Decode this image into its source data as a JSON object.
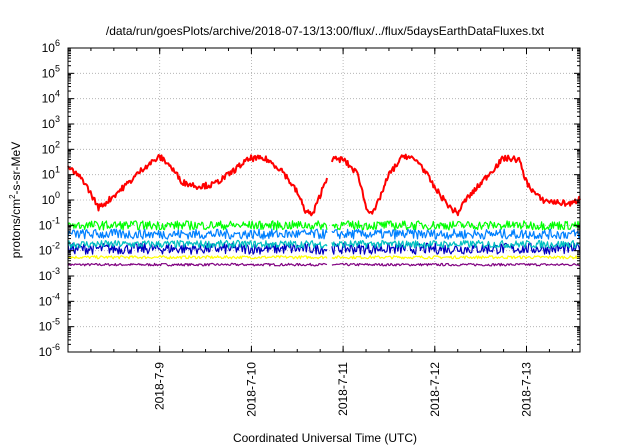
{
  "chart_data": {
    "type": "line",
    "title": "/data/run/goesPlots/archive/2018-07-13/13:00/flux/../flux/5daysEarthDataFluxes.txt",
    "xlabel": "Coordinated Universal Time (UTC)",
    "ylabel_parts": [
      "protons/cm",
      "2",
      "-s-sr-MeV"
    ],
    "ylim": [
      1e-06,
      1000000.0
    ],
    "yscale": "log",
    "xlim": [
      "2018-07-08 00:00",
      "2018-07-13 14:00"
    ],
    "grid": true,
    "y_ticks": [
      {
        "base": "10",
        "exp": "6"
      },
      {
        "base": "10",
        "exp": "5"
      },
      {
        "base": "10",
        "exp": "4"
      },
      {
        "base": "10",
        "exp": "3"
      },
      {
        "base": "10",
        "exp": "2"
      },
      {
        "base": "10",
        "exp": "1"
      },
      {
        "base": "10",
        "exp": "0"
      },
      {
        "base": "10",
        "exp": "-1"
      },
      {
        "base": "10",
        "exp": "-2"
      },
      {
        "base": "10",
        "exp": "-3"
      },
      {
        "base": "10",
        "exp": "-4"
      },
      {
        "base": "10",
        "exp": "-5"
      },
      {
        "base": "10",
        "exp": "-6"
      }
    ],
    "x_tick_labels": [
      "2018-7-9",
      "2018-7-10",
      "2018-7-11",
      "2018-7-12",
      "2018-7-13"
    ],
    "data_gap": [
      "2018-07-10 20:00",
      "2018-07-10 21:00"
    ],
    "series": [
      {
        "color": "#ff0000",
        "noise": 0.12,
        "x": [
          "2018-07-08 00:00",
          "2018-07-08 04:00",
          "2018-07-08 08:00",
          "2018-07-08 10:00",
          "2018-07-08 12:00",
          "2018-07-08 16:00",
          "2018-07-08 20:00",
          "2018-07-09 00:00",
          "2018-07-09 02:00",
          "2018-07-09 06:00",
          "2018-07-09 10:00",
          "2018-07-09 14:00",
          "2018-07-09 18:00",
          "2018-07-09 22:00",
          "2018-07-10 00:00",
          "2018-07-10 04:00",
          "2018-07-10 08:00",
          "2018-07-10 12:00",
          "2018-07-10 14:00",
          "2018-07-10 16:00",
          "2018-07-10 20:00",
          "2018-07-10 21:00",
          "2018-07-11 00:00",
          "2018-07-11 04:00",
          "2018-07-11 06:00",
          "2018-07-11 08:00",
          "2018-07-11 12:00",
          "2018-07-11 16:00",
          "2018-07-11 20:00",
          "2018-07-12 00:00",
          "2018-07-12 04:00",
          "2018-07-12 06:00",
          "2018-07-12 08:00",
          "2018-07-12 10:00",
          "2018-07-12 14:00",
          "2018-07-12 18:00",
          "2018-07-12 22:00",
          "2018-07-13 00:00",
          "2018-07-13 02:00",
          "2018-07-13 04:00",
          "2018-07-13 08:00",
          "2018-07-13 12:00",
          "2018-07-13 14:00"
        ],
        "values": [
          20,
          6,
          0.5,
          0.8,
          1.5,
          5,
          20,
          50,
          30,
          5,
          3.5,
          4,
          10,
          30,
          45,
          40,
          15,
          2,
          0.4,
          0.25,
          10,
          40,
          40,
          10,
          0.5,
          0.3,
          10,
          60,
          30,
          3,
          0.5,
          0.3,
          1,
          2,
          10,
          45,
          40,
          5,
          2,
          1,
          0.8,
          0.7,
          1.2
        ]
      },
      {
        "color": "#00ff00",
        "noise": 0.18,
        "x": [
          "2018-07-08 00:00",
          "2018-07-13 14:00"
        ],
        "values": [
          0.1,
          0.1
        ]
      },
      {
        "color": "#0080ff",
        "noise": 0.2,
        "x": [
          "2018-07-08 00:00",
          "2018-07-13 14:00"
        ],
        "values": [
          0.045,
          0.045
        ]
      },
      {
        "color": "#00c0c0",
        "noise": 0.15,
        "x": [
          "2018-07-08 00:00",
          "2018-07-13 14:00"
        ],
        "values": [
          0.018,
          0.018
        ]
      },
      {
        "color": "#0000c0",
        "noise": 0.22,
        "x": [
          "2018-07-08 00:00",
          "2018-07-13 14:00"
        ],
        "values": [
          0.012,
          0.012
        ]
      },
      {
        "color": "#ffff00",
        "noise": 0.06,
        "x": [
          "2018-07-08 00:00",
          "2018-07-13 14:00"
        ],
        "values": [
          0.0055,
          0.0055
        ]
      },
      {
        "color": "#800080",
        "noise": 0.05,
        "x": [
          "2018-07-08 00:00",
          "2018-07-13 14:00"
        ],
        "values": [
          0.0028,
          0.0028
        ]
      }
    ]
  }
}
